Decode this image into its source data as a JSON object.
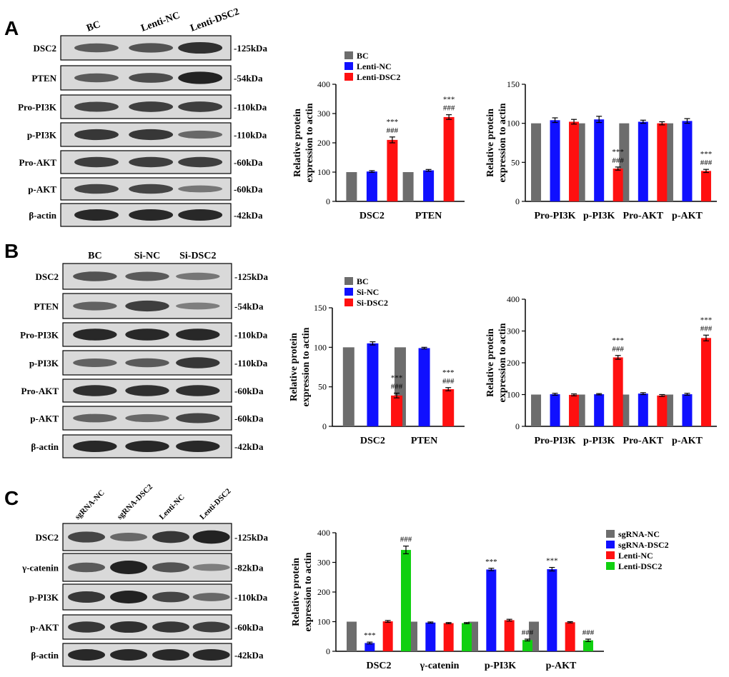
{
  "colors": {
    "gray": "#6d6d6d",
    "blue": "#1010ff",
    "red": "#ff1010",
    "green": "#10d010",
    "band": "#1a1a1a",
    "blot_bg": "#d9d9d9"
  },
  "panels": [
    {
      "letter": "A",
      "blot": {
        "lanes": [
          "BC",
          "Lenti-NC",
          "Lenti-DSC2"
        ],
        "rows": [
          {
            "label": "DSC2",
            "size": "-125kDa",
            "bands": [
              0.55,
              0.6,
              0.85
            ]
          },
          {
            "label": "PTEN",
            "size": "-54kDa",
            "bands": [
              0.55,
              0.65,
              0.95
            ]
          },
          {
            "label": "Pro-PI3K",
            "size": "-110kDa",
            "bands": [
              0.7,
              0.75,
              0.75
            ]
          },
          {
            "label": "p-PI3K",
            "size": "-110kDa",
            "bands": [
              0.8,
              0.8,
              0.45
            ]
          },
          {
            "label": "Pro-AKT",
            "size": "-60kDa",
            "bands": [
              0.75,
              0.75,
              0.75
            ]
          },
          {
            "label": "p-AKT",
            "size": "-60kDa",
            "bands": [
              0.7,
              0.7,
              0.35
            ]
          },
          {
            "label": "β-actin",
            "size": "-42kDa",
            "bands": [
              0.9,
              0.9,
              0.9
            ]
          }
        ]
      }
    },
    {
      "letter": "B",
      "blot": {
        "lanes": [
          "BC",
          "Si-NC",
          "Si-DSC2"
        ],
        "rows": [
          {
            "label": "DSC2",
            "size": "-125kDa",
            "bands": [
              0.6,
              0.55,
              0.35
            ]
          },
          {
            "label": "PTEN",
            "size": "-54kDa",
            "bands": [
              0.5,
              0.75,
              0.3
            ]
          },
          {
            "label": "Pro-PI3K",
            "size": "-110kDa",
            "bands": [
              0.9,
              0.9,
              0.9
            ]
          },
          {
            "label": "p-PI3K",
            "size": "-110kDa",
            "bands": [
              0.5,
              0.55,
              0.8
            ]
          },
          {
            "label": "Pro-AKT",
            "size": "-60kDa",
            "bands": [
              0.85,
              0.85,
              0.85
            ]
          },
          {
            "label": "p-AKT",
            "size": "-60kDa",
            "bands": [
              0.5,
              0.45,
              0.7
            ]
          },
          {
            "label": "β-actin",
            "size": "-42kDa",
            "bands": [
              0.9,
              0.9,
              0.9
            ]
          }
        ]
      }
    },
    {
      "letter": "C",
      "blot": {
        "lanes": [
          "sgRNA-NC",
          "sgRNA-DSC2",
          "Lenti-NC",
          "Lenti-DSC2"
        ],
        "rows": [
          {
            "label": "DSC2",
            "size": "-125kDa",
            "bands": [
              0.7,
              0.45,
              0.8,
              0.95
            ]
          },
          {
            "label": "γ-catenin",
            "size": "-82kDa",
            "bands": [
              0.55,
              0.95,
              0.6,
              0.3
            ]
          },
          {
            "label": "p-PI3K",
            "size": "-110kDa",
            "bands": [
              0.8,
              0.95,
              0.7,
              0.45
            ]
          },
          {
            "label": "p-AKT",
            "size": "-60kDa",
            "bands": [
              0.8,
              0.85,
              0.8,
              0.75
            ]
          },
          {
            "label": "β-actin",
            "size": "-42kDa",
            "bands": [
              0.9,
              0.9,
              0.9,
              0.9
            ]
          }
        ]
      }
    }
  ],
  "chart_data": [
    {
      "id": "A1",
      "type": "bar",
      "ylabel": "Relative protein expression to actin",
      "ylim": [
        0,
        400
      ],
      "yticks": [
        0,
        100,
        200,
        300,
        400
      ],
      "categories": [
        "DSC2",
        "PTEN"
      ],
      "legend": "top-left",
      "series": [
        {
          "name": "BC",
          "color": "gray",
          "values": [
            100,
            100
          ],
          "err": [
            0,
            0
          ]
        },
        {
          "name": "Lenti-NC",
          "color": "blue",
          "values": [
            102,
            106
          ],
          "err": [
            3,
            3
          ]
        },
        {
          "name": "Lenti-DSC2",
          "color": "red",
          "values": [
            210,
            288
          ],
          "err": [
            10,
            8
          ]
        }
      ],
      "annotations": [
        {
          "category": 0,
          "series": 2,
          "lines": [
            "***",
            "###"
          ]
        },
        {
          "category": 1,
          "series": 2,
          "lines": [
            "***",
            "###"
          ]
        }
      ]
    },
    {
      "id": "A2",
      "type": "bar",
      "ylabel": "Relative protein expression to actin",
      "ylim": [
        0,
        150
      ],
      "yticks": [
        0,
        50,
        100,
        150
      ],
      "categories": [
        "Pro-PI3K",
        "p-PI3K",
        "Pro-AKT",
        "p-AKT"
      ],
      "series": [
        {
          "name": "BC",
          "color": "gray",
          "values": [
            100,
            100,
            100,
            100
          ],
          "err": [
            0,
            0,
            0,
            0
          ]
        },
        {
          "name": "Lenti-NC",
          "color": "blue",
          "values": [
            104,
            105,
            102,
            103
          ],
          "err": [
            3,
            4,
            2,
            3
          ]
        },
        {
          "name": "Lenti-DSC2",
          "color": "red",
          "values": [
            102,
            42,
            100,
            39
          ],
          "err": [
            3,
            2,
            2,
            2
          ]
        }
      ],
      "annotations": [
        {
          "category": 1,
          "series": 2,
          "lines": [
            "***",
            "###"
          ]
        },
        {
          "category": 3,
          "series": 2,
          "lines": [
            "***",
            "###"
          ]
        }
      ]
    },
    {
      "id": "B1",
      "type": "bar",
      "ylabel": "Relative protein expression to actin",
      "ylim": [
        0,
        150
      ],
      "yticks": [
        0,
        50,
        100,
        150
      ],
      "categories": [
        "DSC2",
        "PTEN"
      ],
      "legend": "top-left",
      "series": [
        {
          "name": "BC",
          "color": "gray",
          "values": [
            100,
            100
          ],
          "err": [
            0,
            0
          ]
        },
        {
          "name": "Si-NC",
          "color": "blue",
          "values": [
            105,
            99
          ],
          "err": [
            2,
            1
          ]
        },
        {
          "name": "Si-DSC2",
          "color": "red",
          "values": [
            39,
            47
          ],
          "err": [
            3,
            2
          ]
        }
      ],
      "annotations": [
        {
          "category": 0,
          "series": 2,
          "lines": [
            "***",
            "###"
          ]
        },
        {
          "category": 1,
          "series": 2,
          "lines": [
            "***",
            "###"
          ]
        }
      ]
    },
    {
      "id": "B2",
      "type": "bar",
      "ylabel": "Relative protein expression to actin",
      "ylim": [
        0,
        400
      ],
      "yticks": [
        0,
        100,
        200,
        300,
        400
      ],
      "categories": [
        "Pro-PI3K",
        "p-PI3K",
        "Pro-AKT",
        "p-AKT"
      ],
      "series": [
        {
          "name": "BC",
          "color": "gray",
          "values": [
            100,
            100,
            100,
            100
          ],
          "err": [
            0,
            0,
            0,
            0
          ]
        },
        {
          "name": "Si-NC",
          "color": "blue",
          "values": [
            101,
            101,
            103,
            101
          ],
          "err": [
            3,
            2,
            3,
            3
          ]
        },
        {
          "name": "Si-DSC2",
          "color": "red",
          "values": [
            99,
            217,
            97,
            278
          ],
          "err": [
            3,
            6,
            3,
            9
          ]
        }
      ],
      "annotations": [
        {
          "category": 1,
          "series": 2,
          "lines": [
            "***",
            "###"
          ]
        },
        {
          "category": 3,
          "series": 2,
          "lines": [
            "***",
            "###"
          ]
        }
      ]
    },
    {
      "id": "C1",
      "type": "bar",
      "ylabel": "Relative protein expression to actin",
      "ylim": [
        0,
        400
      ],
      "yticks": [
        0,
        100,
        200,
        300,
        400
      ],
      "categories": [
        "DSC2",
        "γ-catenin",
        "p-PI3K",
        "p-AKT"
      ],
      "legend": "top-right",
      "series": [
        {
          "name": "sgRNA-NC",
          "color": "gray",
          "values": [
            100,
            100,
            100,
            100
          ],
          "err": [
            0,
            0,
            0,
            0
          ]
        },
        {
          "name": "sgRNA-DSC2",
          "color": "blue",
          "values": [
            28,
            97,
            276,
            277
          ],
          "err": [
            3,
            2,
            4,
            6
          ]
        },
        {
          "name": "Lenti-NC",
          "color": "red",
          "values": [
            101,
            95,
            105,
            98
          ],
          "err": [
            3,
            2,
            3,
            2
          ]
        },
        {
          "name": "Lenti-DSC2",
          "color": "green",
          "values": [
            342,
            95,
            38,
            37
          ],
          "err": [
            13,
            2,
            3,
            4
          ]
        }
      ],
      "annotations": [
        {
          "category": 0,
          "series": 1,
          "lines": [
            "***"
          ]
        },
        {
          "category": 0,
          "series": 3,
          "lines": [
            "###"
          ]
        },
        {
          "category": 2,
          "series": 1,
          "lines": [
            "***"
          ]
        },
        {
          "category": 2,
          "series": 3,
          "lines": [
            "###"
          ]
        },
        {
          "category": 3,
          "series": 1,
          "lines": [
            "***"
          ]
        },
        {
          "category": 3,
          "series": 3,
          "lines": [
            "###"
          ]
        }
      ]
    }
  ]
}
